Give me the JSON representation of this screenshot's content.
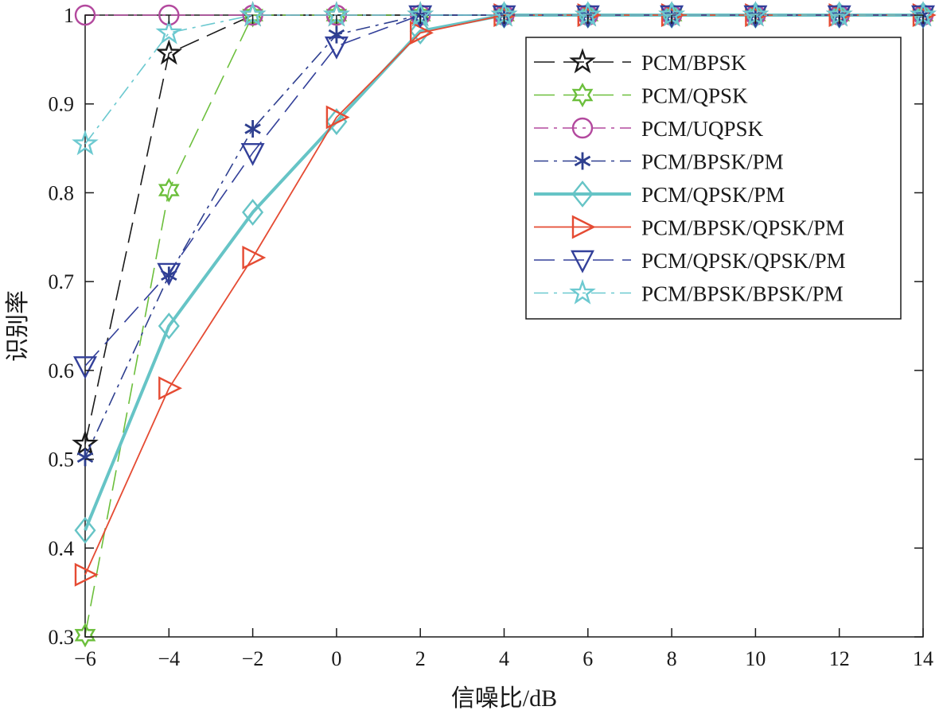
{
  "chart_data": {
    "type": "line",
    "title": "",
    "xlabel": "信噪比/dB",
    "ylabel": "识别率",
    "xlim": [
      -6,
      14
    ],
    "ylim": [
      0.3,
      1.0
    ],
    "x_ticks": [
      -6,
      -4,
      -2,
      0,
      2,
      4,
      6,
      8,
      10,
      12,
      14
    ],
    "y_ticks": [
      0.3,
      0.4,
      0.5,
      0.6,
      0.7,
      0.8,
      0.9,
      1.0
    ],
    "x_tick_labels": [
      "−6",
      "−4",
      "−2",
      "0",
      "2",
      "4",
      "6",
      "8",
      "10",
      "12",
      "14"
    ],
    "y_tick_labels": [
      "0.3",
      "0.4",
      "0.5",
      "0.6",
      "0.7",
      "0.8",
      "0.9",
      "1"
    ],
    "grid": false,
    "legend_position": "top-right",
    "x": [
      -6,
      -4,
      -2,
      0,
      2,
      4,
      6,
      8,
      10,
      12,
      14
    ],
    "series": [
      {
        "name": "PCM/BPSK",
        "values": [
          0.517,
          0.957,
          1.0,
          1.0,
          1.0,
          1.0,
          1.0,
          1.0,
          1.0,
          1.0,
          1.0
        ],
        "color": "#1a1a1a",
        "marker": "star5",
        "dash": "longdash",
        "width": 1.6
      },
      {
        "name": "PCM/QPSK",
        "values": [
          0.302,
          0.803,
          1.0,
          1.0,
          1.0,
          1.0,
          1.0,
          1.0,
          1.0,
          1.0,
          1.0
        ],
        "color": "#6cbf3c",
        "marker": "star6",
        "dash": "longdash",
        "width": 1.6
      },
      {
        "name": "PCM/UQPSK",
        "values": [
          1.0,
          1.0,
          1.0,
          1.0,
          1.0,
          1.0,
          1.0,
          1.0,
          1.0,
          1.0,
          1.0
        ],
        "color": "#b3499e",
        "marker": "circle",
        "dash": "dashdot",
        "width": 1.6
      },
      {
        "name": "PCM/BPSK/PM",
        "values": [
          0.502,
          0.707,
          0.872,
          0.978,
          1.0,
          1.0,
          1.0,
          1.0,
          1.0,
          1.0,
          1.0
        ],
        "color": "#2e3f8f",
        "marker": "asterisk",
        "dash": "dashdot",
        "width": 1.6
      },
      {
        "name": "PCM/QPSK/PM",
        "values": [
          0.42,
          0.65,
          0.778,
          0.88,
          0.982,
          1.0,
          1.0,
          1.0,
          1.0,
          1.0,
          1.0
        ],
        "color": "#66c4c6",
        "marker": "diamond",
        "dash": "solid",
        "width": 4
      },
      {
        "name": "PCM/BPSK/QPSK/PM",
        "values": [
          0.37,
          0.58,
          0.727,
          0.885,
          0.98,
          1.0,
          1.0,
          1.0,
          1.0,
          1.0,
          1.0
        ],
        "color": "#e54b33",
        "marker": "triangle-right",
        "dash": "solid",
        "width": 1.8
      },
      {
        "name": "PCM/QPSK/QPSK/PM",
        "values": [
          0.605,
          0.71,
          0.845,
          0.965,
          1.0,
          1.0,
          1.0,
          1.0,
          1.0,
          1.0,
          1.0
        ],
        "color": "#33409a",
        "marker": "triangle-down",
        "dash": "longdash",
        "width": 1.6
      },
      {
        "name": "PCM/BPSK/BPSK/PM",
        "values": [
          0.855,
          0.98,
          1.0,
          1.0,
          1.0,
          1.0,
          1.0,
          1.0,
          1.0,
          1.0,
          1.0
        ],
        "color": "#6cc9d0",
        "marker": "star5",
        "dash": "dashdot",
        "width": 1.6
      }
    ]
  }
}
